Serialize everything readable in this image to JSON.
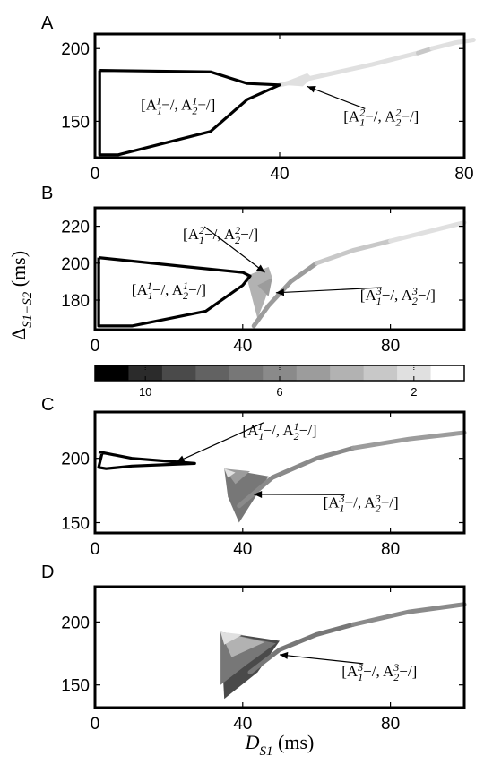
{
  "colorbar": {
    "ticks": [
      {
        "value": 10,
        "label": "10"
      },
      {
        "value": 6,
        "label": "6"
      },
      {
        "value": 2,
        "label": "2"
      }
    ],
    "levels": [
      11,
      10,
      9,
      8,
      7,
      6,
      5,
      4,
      3,
      2,
      1
    ],
    "colors": [
      "#000000",
      "#2b2b2b",
      "#4a4a4a",
      "#626262",
      "#777777",
      "#8a8a8a",
      "#9c9c9c",
      "#b2b2b2",
      "#c8c8c8",
      "#e0e0e0",
      "#ffffff"
    ]
  },
  "shared": {
    "ylabel_main": "Δ",
    "ylabel_sub": "S1−S2",
    "ylabel_unit": "(ms)",
    "xlabel_main": "D",
    "xlabel_sub": "S1",
    "xlabel_unit": "(ms)"
  },
  "chart_data": [
    {
      "panel": "A",
      "type": "line",
      "xlim": [
        0,
        80
      ],
      "ylim": [
        125,
        210
      ],
      "xticks": [
        0,
        40,
        80
      ],
      "yticks": [
        150,
        200
      ],
      "grid": false,
      "outline": [
        [
          1,
          185
        ],
        [
          25,
          184
        ],
        [
          33,
          176
        ],
        [
          40,
          175
        ],
        [
          33,
          165
        ],
        [
          25,
          143
        ],
        [
          5,
          127
        ],
        [
          1,
          127
        ],
        [
          1,
          185
        ]
      ],
      "region": {
        "color_level": 2,
        "points": [
          [
            39.5,
            175
          ],
          [
            46,
            183
          ],
          [
            47,
            180
          ],
          [
            45,
            174
          ],
          [
            40.5,
            175
          ]
        ]
      },
      "curve": [
        {
          "level": 2,
          "points": [
            [
              40,
              175
            ],
            [
              50,
              182
            ],
            [
              60,
              189
            ],
            [
              70,
              197
            ]
          ]
        },
        {
          "level": 3,
          "points": [
            [
              70,
              197
            ],
            [
              73,
              200
            ]
          ]
        },
        {
          "level": 2,
          "points": [
            [
              73,
              200
            ],
            [
              78,
              204
            ],
            [
              82,
              206
            ]
          ]
        }
      ],
      "annotations": [
        {
          "label": [
            "A",
            "1",
            "1",
            "A",
            "1",
            "2"
          ],
          "x": 18,
          "y": 158,
          "arrow": null
        },
        {
          "label": [
            "A",
            "2",
            "1",
            "A",
            "2",
            "2"
          ],
          "x": 62,
          "y": 150,
          "arrow": [
            46,
            174
          ]
        }
      ]
    },
    {
      "panel": "B",
      "type": "line",
      "xlim": [
        0,
        100
      ],
      "ylim": [
        164,
        230
      ],
      "xticks": [
        0,
        40,
        80
      ],
      "yticks": [
        180,
        200,
        220
      ],
      "grid": false,
      "outline": [
        [
          1,
          203
        ],
        [
          25,
          198
        ],
        [
          40,
          195
        ],
        [
          42,
          193
        ],
        [
          40,
          188
        ],
        [
          30,
          174
        ],
        [
          10,
          166
        ],
        [
          1,
          166
        ],
        [
          1,
          203
        ]
      ],
      "regions": [
        {
          "color_level": 4,
          "points": [
            [
              41,
              193
            ],
            [
              47,
              198
            ],
            [
              48,
              192
            ],
            [
              46,
              180
            ],
            [
              44,
              170
            ]
          ]
        },
        {
          "color_level": 5,
          "points": [
            [
              44,
              188
            ],
            [
              48,
              192
            ],
            [
              47,
              182
            ]
          ]
        }
      ],
      "curve": [
        {
          "level": 5,
          "points": [
            [
              43,
              166
            ],
            [
              47,
              177
            ],
            [
              53,
              190
            ],
            [
              60,
              200
            ]
          ]
        },
        {
          "level": 3,
          "points": [
            [
              60,
              200
            ],
            [
              70,
              207
            ],
            [
              80,
              212
            ]
          ]
        },
        {
          "level": 2,
          "points": [
            [
              80,
              212
            ],
            [
              90,
              217
            ],
            [
              100,
              222
            ]
          ]
        }
      ],
      "annotations": [
        {
          "label": [
            "A",
            "1",
            "1",
            "A",
            "1",
            "2"
          ],
          "x": 20,
          "y": 183,
          "arrow": null
        },
        {
          "label": [
            "A",
            "2",
            "1",
            "A",
            "2",
            "2"
          ],
          "x": 34,
          "y": 213,
          "arrow": [
            46,
            195
          ]
        },
        {
          "label": [
            "A",
            "3",
            "1",
            "A",
            "3",
            "2"
          ],
          "x": 82,
          "y": 180,
          "arrow": [
            49,
            184
          ]
        }
      ]
    },
    {
      "panel": "C",
      "type": "line",
      "xlim": [
        0,
        100
      ],
      "ylim": [
        142,
        236
      ],
      "xticks": [
        0,
        40,
        80
      ],
      "yticks": [
        150,
        200
      ],
      "grid": false,
      "outline": [
        [
          1,
          205
        ],
        [
          10,
          200
        ],
        [
          27,
          196
        ],
        [
          10,
          194
        ],
        [
          3,
          192
        ],
        [
          1,
          193
        ],
        [
          2,
          205
        ]
      ],
      "regions": [
        {
          "color_level": 7,
          "points": [
            [
              35,
              192
            ],
            [
              47,
              186
            ],
            [
              39,
              150
            ],
            [
              36,
              170
            ]
          ]
        },
        {
          "color_level": 5,
          "points": [
            [
              35,
              192
            ],
            [
              42,
              190
            ],
            [
              38,
              180
            ]
          ]
        },
        {
          "color_level": 2,
          "points": [
            [
              35,
              192
            ],
            [
              38,
              189
            ],
            [
              36,
              185
            ]
          ]
        }
      ],
      "curve": [
        {
          "level": 6,
          "points": [
            [
              39,
              163
            ],
            [
              48,
              185
            ],
            [
              60,
              200
            ],
            [
              70,
              208
            ]
          ]
        },
        {
          "level": 5,
          "points": [
            [
              70,
              208
            ],
            [
              85,
              215
            ],
            [
              100,
              220
            ]
          ]
        }
      ],
      "annotations": [
        {
          "label": [
            "A",
            "1",
            "1",
            "A",
            "1",
            "2"
          ],
          "x": 50,
          "y": 218,
          "arrow": [
            22,
            197
          ]
        },
        {
          "label": [
            "A",
            "3",
            "1",
            "A",
            "3",
            "2"
          ],
          "x": 72,
          "y": 162,
          "arrow": [
            43,
            172
          ]
        }
      ]
    },
    {
      "panel": "D",
      "type": "line",
      "xlim": [
        0,
        100
      ],
      "ylim": [
        132,
        228
      ],
      "xticks": [
        0,
        40,
        80
      ],
      "yticks": [
        150,
        200
      ],
      "grid": false,
      "regions": [
        {
          "color_level": 9,
          "points": [
            [
              34,
              192
            ],
            [
              50,
              185
            ],
            [
              44,
              160
            ],
            [
              35,
              139
            ]
          ]
        },
        {
          "color_level": 7,
          "points": [
            [
              34,
              192
            ],
            [
              49,
              183
            ],
            [
              41,
              166
            ],
            [
              34,
              150
            ]
          ]
        },
        {
          "color_level": 4,
          "points": [
            [
              34,
              192
            ],
            [
              46,
              184
            ],
            [
              37,
              172
            ]
          ]
        },
        {
          "color_level": 2,
          "points": [
            [
              34,
              192
            ],
            [
              40,
              190
            ],
            [
              35,
              182
            ]
          ]
        }
      ],
      "curve": [
        {
          "level": 7,
          "points": [
            [
              42,
              160
            ],
            [
              50,
              178
            ],
            [
              60,
              190
            ],
            [
              70,
              198
            ]
          ]
        },
        {
          "level": 6,
          "points": [
            [
              70,
              198
            ],
            [
              85,
              208
            ],
            [
              100,
              214
            ]
          ]
        }
      ],
      "annotations": [
        {
          "label": [
            "A",
            "3",
            "1",
            "A",
            "3",
            "2"
          ],
          "x": 77,
          "y": 157,
          "arrow": [
            50,
            174
          ]
        }
      ]
    }
  ]
}
